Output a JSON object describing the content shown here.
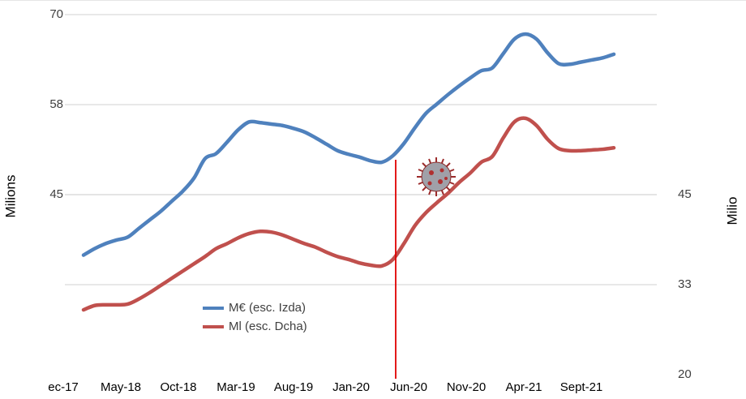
{
  "chart_data": {
    "type": "line",
    "y_label": "Milions",
    "y2_label": "Milio",
    "categories": [
      "ec-17",
      null,
      null,
      null,
      null,
      "May-18",
      null,
      null,
      null,
      null,
      "Oct-18",
      null,
      null,
      null,
      null,
      "Mar-19",
      null,
      null,
      null,
      null,
      "Aug-19",
      null,
      null,
      null,
      null,
      "Jan-20",
      null,
      null,
      null,
      null,
      "Jun-20",
      null,
      null,
      null,
      null,
      "Nov-20",
      null,
      null,
      null,
      null,
      "Apr-21",
      null,
      null,
      null,
      null,
      "Sept-21",
      null,
      null,
      null
    ],
    "series": [
      {
        "name": "M€ (esc. Izda)",
        "color": "#4f81bd",
        "axis": "y",
        "values": [
          36.6,
          37.5,
          38.2,
          38.7,
          39.1,
          40.3,
          41.5,
          42.7,
          44.1,
          45.5,
          47.3,
          50.0,
          50.7,
          52.3,
          54.0,
          55.1,
          55.0,
          54.8,
          54.6,
          54.2,
          53.7,
          52.9,
          52.0,
          51.1,
          50.6,
          50.2,
          49.7,
          49.5,
          50.4,
          52.1,
          54.3,
          56.3,
          57.6,
          58.9,
          60.1,
          61.2,
          62.2,
          62.6,
          64.6,
          66.6,
          67.3,
          66.6,
          64.7,
          63.2,
          63.1,
          63.4,
          63.7,
          64.0,
          64.5
        ]
      },
      {
        "name": "Ml (esc. Dcha)",
        "color": "#c0504d",
        "axis": "y2",
        "values": [
          29.0,
          29.6,
          29.7,
          29.7,
          29.8,
          30.5,
          31.4,
          32.4,
          33.4,
          34.4,
          35.4,
          36.4,
          37.5,
          38.2,
          39.0,
          39.6,
          39.9,
          39.8,
          39.4,
          38.8,
          38.2,
          37.7,
          37.0,
          36.4,
          36.0,
          35.5,
          35.2,
          35.1,
          36.0,
          38.2,
          40.7,
          42.5,
          43.9,
          45.2,
          46.7,
          48.0,
          49.5,
          50.3,
          52.9,
          55.1,
          55.6,
          54.6,
          52.7,
          51.4,
          51.1,
          51.1,
          51.2,
          51.3,
          51.5
        ]
      }
    ],
    "ylim": [
      20,
      70
    ],
    "yticks": [
      70,
      {
        "value": 57.5,
        "label": "58"
      },
      45
    ],
    "y2lim": [
      20,
      70
    ],
    "y2ticks": [
      45,
      {
        "value": 32.5,
        "label": "33"
      },
      20
    ],
    "grid": true
  }
}
